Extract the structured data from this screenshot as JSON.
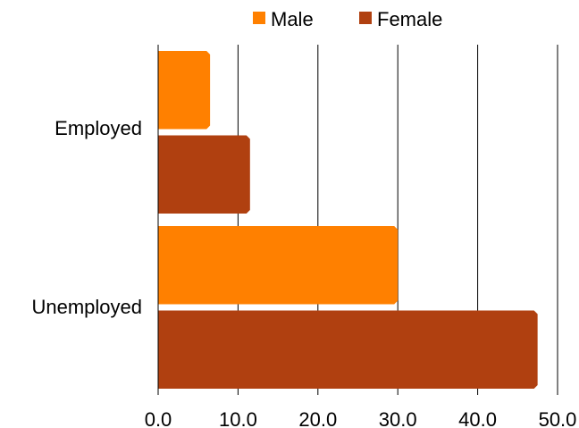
{
  "chart_data": {
    "type": "bar",
    "orientation": "horizontal",
    "categories": [
      "Employed",
      "Unemployed"
    ],
    "series": [
      {
        "name": "Male",
        "color": "#FF8000",
        "values": [
          6.5,
          30.0
        ]
      },
      {
        "name": "Female",
        "color": "#B04010",
        "values": [
          11.5,
          47.5
        ]
      }
    ],
    "xlim": [
      0,
      50
    ],
    "xticks": [
      0,
      10,
      20,
      30,
      40,
      50
    ],
    "tick_labels": [
      "0.0",
      "10.0",
      "20.0",
      "30.0",
      "40.0",
      "50.0"
    ],
    "grid": true,
    "legend": "top",
    "title": "",
    "xlabel": "",
    "ylabel": ""
  }
}
